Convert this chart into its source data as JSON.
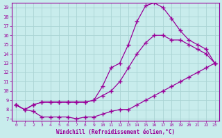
{
  "xlabel": "Windchill (Refroidissement éolien,°C)",
  "bg_color": "#c8ecec",
  "grid_color": "#aad4d4",
  "line_color": "#990099",
  "xlim": [
    -0.5,
    23.5
  ],
  "ylim": [
    6.8,
    19.5
  ],
  "yticks": [
    7,
    8,
    9,
    10,
    11,
    12,
    13,
    14,
    15,
    16,
    17,
    18,
    19
  ],
  "xticks": [
    0,
    1,
    2,
    3,
    4,
    5,
    6,
    7,
    8,
    9,
    10,
    11,
    12,
    13,
    14,
    15,
    16,
    17,
    18,
    19,
    20,
    21,
    22,
    23
  ],
  "line1_x": [
    0,
    1,
    2,
    3,
    4,
    5,
    6,
    7,
    8,
    9,
    10,
    11,
    12,
    13,
    14,
    15,
    16,
    17,
    18,
    19,
    20,
    21,
    22,
    23
  ],
  "line1_y": [
    8.5,
    8.0,
    7.8,
    7.2,
    7.2,
    7.2,
    7.2,
    7.0,
    7.2,
    7.2,
    7.5,
    7.8,
    8.0,
    8.0,
    8.5,
    9.0,
    9.5,
    10.0,
    10.5,
    11.0,
    11.5,
    12.0,
    12.5,
    13.0
  ],
  "line2_x": [
    0,
    1,
    2,
    3,
    4,
    5,
    6,
    7,
    8,
    9,
    10,
    11,
    12,
    13,
    14,
    15,
    16,
    17,
    18,
    19,
    20,
    21,
    22,
    23
  ],
  "line2_y": [
    8.5,
    8.0,
    8.5,
    8.8,
    8.8,
    8.8,
    8.8,
    8.8,
    8.8,
    9.0,
    9.5,
    10.0,
    11.0,
    12.5,
    14.0,
    15.2,
    16.0,
    16.0,
    15.5,
    15.5,
    15.0,
    14.5,
    14.0,
    13.0
  ],
  "line3_x": [
    0,
    1,
    2,
    3,
    4,
    5,
    6,
    7,
    8,
    9,
    10,
    11,
    12,
    13,
    14,
    15,
    16,
    17,
    18,
    19,
    20,
    21,
    22,
    23
  ],
  "line3_y": [
    8.5,
    8.0,
    8.5,
    8.8,
    8.8,
    8.8,
    8.8,
    8.8,
    8.8,
    9.0,
    10.5,
    12.5,
    13.0,
    15.0,
    17.5,
    19.2,
    19.5,
    19.0,
    17.8,
    16.5,
    15.5,
    15.0,
    14.5,
    13.0
  ]
}
